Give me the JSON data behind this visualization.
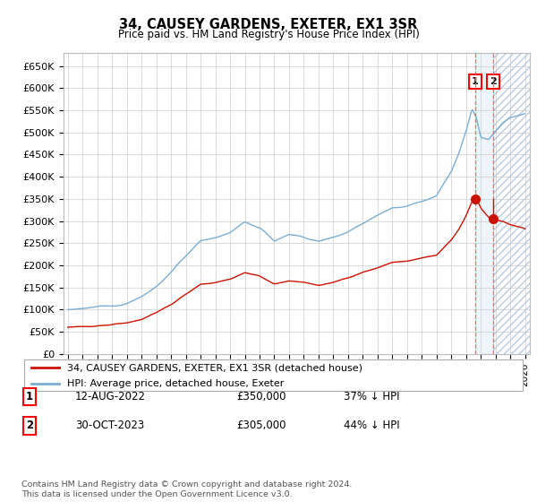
{
  "title": "34, CAUSEY GARDENS, EXETER, EX1 3SR",
  "subtitle": "Price paid vs. HM Land Registry's House Price Index (HPI)",
  "ylim": [
    0,
    680000
  ],
  "yticks": [
    0,
    50000,
    100000,
    150000,
    200000,
    250000,
    300000,
    350000,
    400000,
    450000,
    500000,
    550000,
    600000,
    650000
  ],
  "hpi_color": "#7aaed6",
  "price_color": "#cc1100",
  "transaction1_date": 2022.615,
  "transaction1_price": 350000,
  "transaction2_date": 2023.83,
  "transaction2_price": 305000,
  "legend_line1": "34, CAUSEY GARDENS, EXETER, EX1 3SR (detached house)",
  "legend_line2": "HPI: Average price, detached house, Exeter",
  "table_row1": [
    "1",
    "12-AUG-2022",
    "£350,000",
    "37% ↓ HPI"
  ],
  "table_row2": [
    "2",
    "30-OCT-2023",
    "£305,000",
    "44% ↓ HPI"
  ],
  "footer": "Contains HM Land Registry data © Crown copyright and database right 2024.\nThis data is licensed under the Open Government Licence v3.0.",
  "xlim_left": 1994.7,
  "xlim_right": 2026.3
}
